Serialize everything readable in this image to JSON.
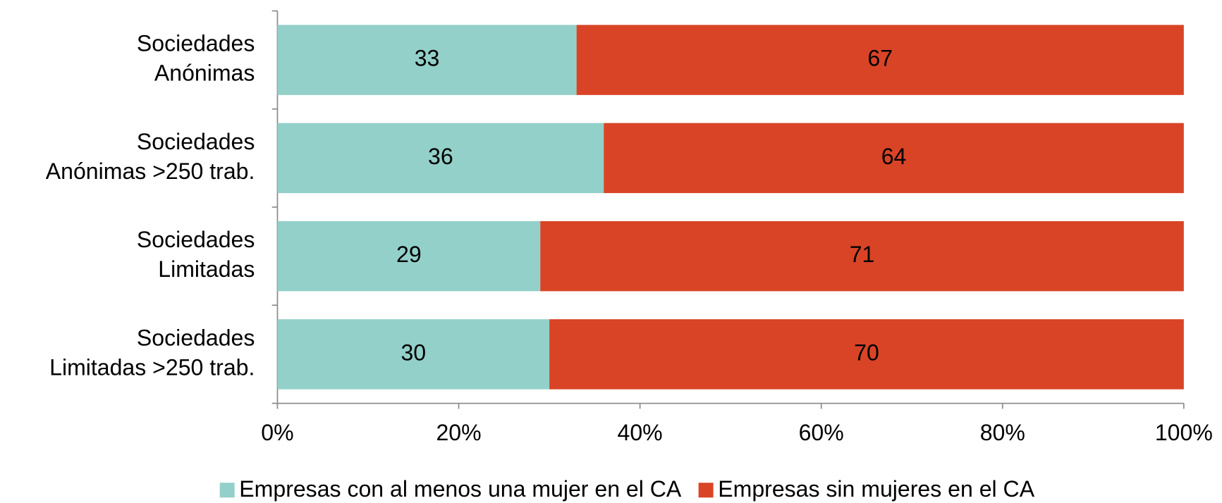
{
  "chart_data": {
    "type": "stacked_bar_horizontal",
    "categories": [
      [
        "Sociedades",
        "Anónimas"
      ],
      [
        "Sociedades",
        "Anónimas >250 trab."
      ],
      [
        "Sociedades",
        "Limitadas"
      ],
      [
        "Sociedades",
        "Limitadas >250 trab."
      ]
    ],
    "series": [
      {
        "name": "Empresas con al menos una mujer en el CA",
        "color": "#93d0c9",
        "values": [
          33,
          36,
          29,
          30
        ]
      },
      {
        "name": "Empresas sin mujeres en el CA",
        "color": "#d94427",
        "values": [
          67,
          64,
          71,
          70
        ]
      }
    ],
    "xlim": [
      0,
      100
    ],
    "xticks": [
      {
        "value": 0,
        "label": "0%"
      },
      {
        "value": 20,
        "label": "20%"
      },
      {
        "value": 40,
        "label": "40%"
      },
      {
        "value": 60,
        "label": "60%"
      },
      {
        "value": 80,
        "label": "80%"
      },
      {
        "value": 100,
        "label": "100%"
      }
    ],
    "legend": "bottom"
  }
}
